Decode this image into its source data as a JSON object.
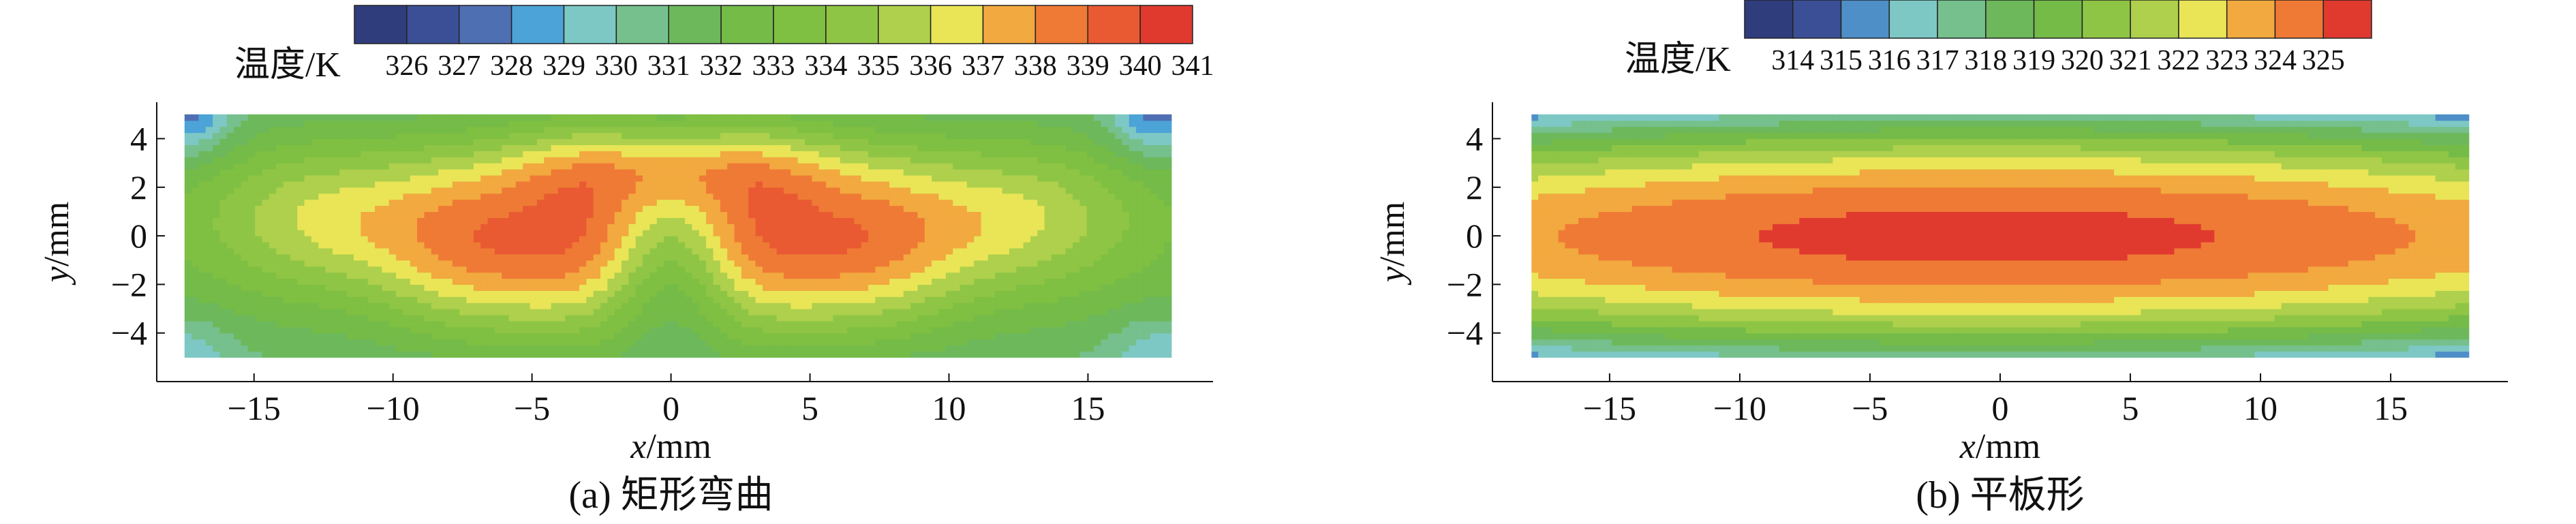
{
  "chart_data": [
    {
      "type": "heatmap",
      "subplot_label": "(a) 矩形弯曲",
      "xlabel_var": "x",
      "xlabel_unit": "/mm",
      "ylabel_var": "y",
      "ylabel_unit": "/mm",
      "xlim": [
        -18.5,
        19.5
      ],
      "ylim": [
        -6,
        5.5
      ],
      "xticks": [
        -15,
        -10,
        -5,
        0,
        5,
        10,
        15
      ],
      "yticks": [
        -4,
        -2,
        0,
        2,
        4
      ],
      "data_extent": {
        "x": [
          -17.5,
          18
        ],
        "y": [
          -5,
          5
        ]
      },
      "colorbar": {
        "label": "温度/K",
        "ticks": [
          326,
          327,
          328,
          329,
          330,
          331,
          332,
          333,
          334,
          335,
          336,
          337,
          338,
          339,
          340,
          341
        ],
        "colors": [
          "#2f3d7d",
          "#3a4f95",
          "#4f6fb3",
          "#4ca3d7",
          "#7dc8c4",
          "#75c08c",
          "#6db85a",
          "#74bb48",
          "#7fbf42",
          "#8fc545",
          "#aed04c",
          "#e9e557",
          "#f2a93f",
          "#ef7a35",
          "#e95a33",
          "#e03a2f"
        ]
      },
      "field": {
        "base": 332.2,
        "yfalloff": 0.05,
        "bumps": [
          {
            "x": -12.5,
            "y": 0.8,
            "sx": 3.2,
            "sy": 2.2,
            "a": 3.8
          },
          {
            "x": 12.5,
            "y": 0.8,
            "sx": 3.2,
            "sy": 2.2,
            "a": 3.8
          },
          {
            "x": -7.0,
            "y": -0.3,
            "sx": 2.6,
            "sy": 2.6,
            "a": 5.2
          },
          {
            "x": 7.0,
            "y": -0.3,
            "sx": 2.6,
            "sy": 2.6,
            "a": 5.2
          },
          {
            "x": -2.8,
            "y": 0.2,
            "sx": 2.2,
            "sy": 3.0,
            "a": 5.0
          },
          {
            "x": 2.8,
            "y": 0.2,
            "sx": 2.2,
            "sy": 3.0,
            "a": 5.0
          },
          {
            "x": 0,
            "y": 2.8,
            "sx": 4.2,
            "sy": 1.2,
            "a": 2.8
          },
          {
            "x": 0,
            "y": -1.6,
            "sx": 1.5,
            "sy": 2.2,
            "a": -2.6
          },
          {
            "x": -17.5,
            "y": 5,
            "sx": 1.2,
            "sy": 1.2,
            "a": -3.5
          },
          {
            "x": 17.5,
            "y": 5,
            "sx": 1.2,
            "sy": 1.2,
            "a": -3.5
          },
          {
            "x": -17.5,
            "y": -5,
            "sx": 1.2,
            "sy": 1.2,
            "a": -2.0
          },
          {
            "x": 17.5,
            "y": -5,
            "sx": 1.2,
            "sy": 1.2,
            "a": -2.0
          }
        ]
      }
    },
    {
      "type": "heatmap",
      "subplot_label": "(b) 平板形",
      "xlabel_var": "x",
      "xlabel_unit": "/mm",
      "ylabel_var": "y",
      "ylabel_unit": "/mm",
      "xlim": [
        -19.5,
        19.5
      ],
      "ylim": [
        -6,
        5.5
      ],
      "xticks": [
        -15,
        -10,
        -5,
        0,
        5,
        10,
        15
      ],
      "yticks": [
        -4,
        -2,
        0,
        2,
        4
      ],
      "data_extent": {
        "x": [
          -18,
          18
        ],
        "y": [
          -5,
          5
        ]
      },
      "colorbar": {
        "label": "温度/K",
        "ticks": [
          314,
          315,
          316,
          317,
          318,
          319,
          320,
          321,
          322,
          323,
          324,
          325
        ],
        "colors": [
          "#2f3d7d",
          "#3a4f95",
          "#4f8fc8",
          "#7dc8c4",
          "#75c08c",
          "#6db85a",
          "#74bb48",
          "#8fc545",
          "#aed04c",
          "#e9e557",
          "#f2a93f",
          "#ef7a35",
          "#e03a2f"
        ]
      },
      "field": {
        "type": "ellipse",
        "tmax": 325.4,
        "x0": -0.5,
        "ax": 0.0052,
        "by": 0.33
      }
    }
  ]
}
